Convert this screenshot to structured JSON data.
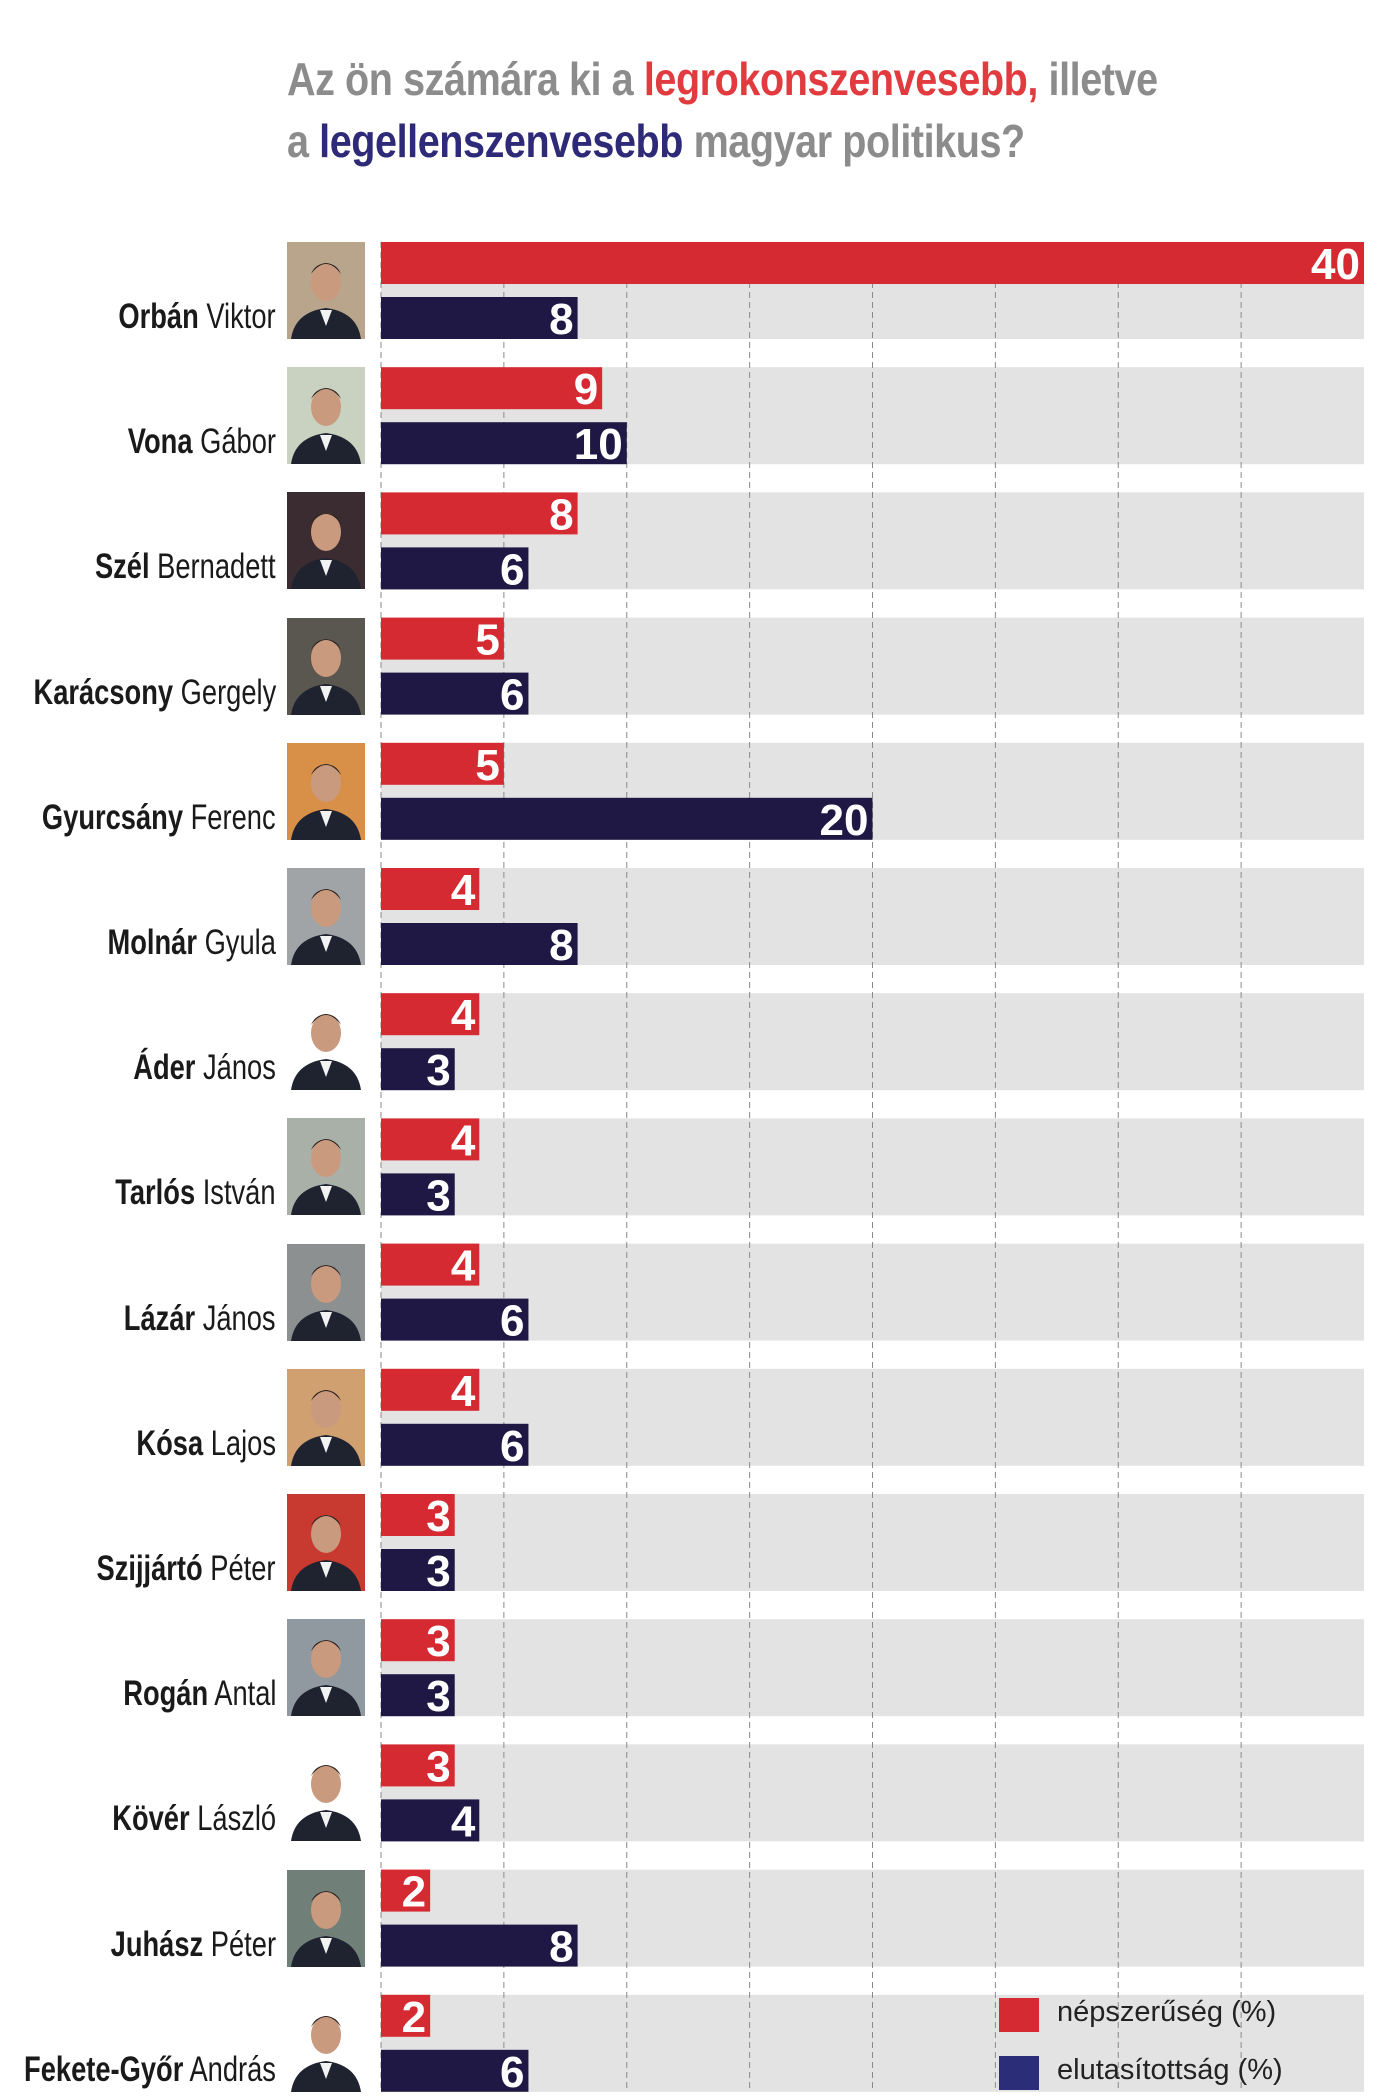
{
  "title": {
    "part1": "Az ön számára ki a ",
    "highlight_red": "legrokonszenvesebb,",
    "part2": " illetve",
    "part3": "a ",
    "highlight_blue": "legellenszenvesebb",
    "part4": " magyar politikus?"
  },
  "colors": {
    "popularity": "#d62a32",
    "rejection_bar": "#1f1844",
    "rejection_legend": "#2b2d78",
    "band": "#e3e3e3",
    "title_gray": "#8c8c8c",
    "title_red": "#e23b3f",
    "title_blue": "#2e2a78"
  },
  "chart_data": {
    "type": "bar",
    "orientation": "horizontal",
    "title": "Az ön számára ki a legrokonszenvesebb, illetve a legellenszenvesebb magyar politikus?",
    "xlim": [
      0,
      40
    ],
    "grid": true,
    "grid_step": 5,
    "legend_placement": "bottom-right",
    "categories": [
      {
        "surname": "Orbán",
        "given": "Viktor"
      },
      {
        "surname": "Vona",
        "given": "Gábor"
      },
      {
        "surname": "Szél",
        "given": "Bernadett"
      },
      {
        "surname": "Karácsony",
        "given": "Gergely"
      },
      {
        "surname": "Gyurcsány",
        "given": "Ferenc"
      },
      {
        "surname": "Molnár",
        "given": "Gyula"
      },
      {
        "surname": "Áder",
        "given": "János"
      },
      {
        "surname": "Tarlós",
        "given": "István"
      },
      {
        "surname": "Lázár",
        "given": "János"
      },
      {
        "surname": "Kósa",
        "given": "Lajos"
      },
      {
        "surname": "Szijjártó",
        "given": "Péter"
      },
      {
        "surname": "Rogán",
        "given": "Antal"
      },
      {
        "surname": "Kövér",
        "given": "László"
      },
      {
        "surname": "Juhász",
        "given": "Péter"
      },
      {
        "surname": "Fekete-Győr",
        "given": "András"
      }
    ],
    "series": [
      {
        "name": "népszerűség (%)",
        "values": [
          40,
          9,
          8,
          5,
          5,
          4,
          4,
          4,
          4,
          4,
          3,
          3,
          3,
          2,
          2
        ]
      },
      {
        "name": "elutasítottság (%)",
        "values": [
          8,
          10,
          6,
          6,
          20,
          8,
          3,
          3,
          6,
          6,
          3,
          3,
          4,
          8,
          6
        ]
      }
    ]
  },
  "legend": {
    "popularity": "népszerűség (%)",
    "rejection": "elutasítottság (%)"
  }
}
